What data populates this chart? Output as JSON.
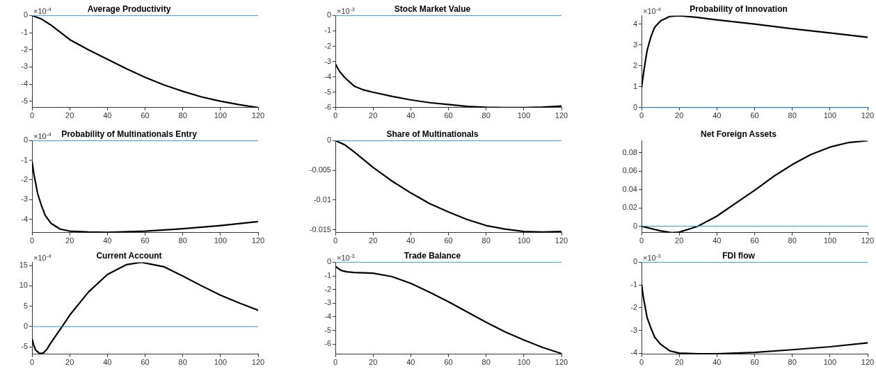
{
  "chart_data": [
    {
      "type": "line",
      "title": "Average Productivity",
      "annotations": [
        "×10$^{-4}$"
      ],
      "xlim": [
        0,
        120
      ],
      "xticks": [
        0,
        20,
        40,
        60,
        80,
        100,
        120
      ],
      "ylim": [
        -5.37,
        0
      ],
      "yticks": [
        -5,
        -4,
        -3,
        -2,
        -1,
        0
      ],
      "ref_lines": [
        {
          "axis": "y",
          "value": 0,
          "color": "#3399dd"
        }
      ],
      "x": [
        0,
        5,
        10,
        20,
        30,
        40,
        50,
        60,
        70,
        80,
        90,
        100,
        110,
        120
      ],
      "series": [
        {
          "color": "#000000",
          "values": [
            0,
            -0.2,
            -0.55,
            -1.4,
            -2.0,
            -2.55,
            -3.1,
            -3.6,
            -4.05,
            -4.42,
            -4.75,
            -5.0,
            -5.2,
            -5.37
          ]
        }
      ]
    },
    {
      "type": "line",
      "title": "Stock Market Value",
      "annotations": [
        "×10$^{-3}$"
      ],
      "xlim": [
        0,
        120
      ],
      "xticks": [
        0,
        20,
        40,
        60,
        80,
        100,
        120
      ],
      "ylim": [
        -6,
        0
      ],
      "yticks": [
        -6,
        -5,
        -4,
        -3,
        -2,
        -1,
        0
      ],
      "ref_lines": [
        {
          "axis": "y",
          "value": 0,
          "color": "#3399dd"
        }
      ],
      "x": [
        0,
        2,
        5,
        10,
        15,
        20,
        30,
        40,
        50,
        60,
        70,
        80,
        90,
        100,
        110,
        120
      ],
      "series": [
        {
          "color": "#000000",
          "values": [
            -3.15,
            -3.6,
            -4.05,
            -4.6,
            -4.85,
            -5.0,
            -5.27,
            -5.5,
            -5.68,
            -5.8,
            -5.92,
            -5.98,
            -6.0,
            -6.0,
            -5.97,
            -5.9
          ]
        }
      ]
    },
    {
      "type": "line",
      "title": "Probability of Innovation",
      "annotations": [
        "×10$^{-4}$"
      ],
      "xlim": [
        0,
        120
      ],
      "xticks": [
        0,
        20,
        40,
        60,
        80,
        100,
        120
      ],
      "ylim": [
        0,
        4.41
      ],
      "yticks": [
        0,
        1,
        2,
        3,
        4
      ],
      "ref_lines": [
        {
          "axis": "y",
          "value": 0,
          "color": "#3399dd"
        }
      ],
      "x": [
        0,
        1,
        2,
        3,
        5,
        7,
        10,
        15,
        20,
        30,
        40,
        60,
        80,
        100,
        120
      ],
      "series": [
        {
          "color": "#000000",
          "values": [
            0.95,
            1.6,
            2.2,
            2.75,
            3.4,
            3.85,
            4.15,
            4.37,
            4.4,
            4.32,
            4.2,
            4.0,
            3.78,
            3.58,
            3.37
          ]
        }
      ]
    },
    {
      "type": "line",
      "title": "Probability of Multinationals Entry",
      "annotations": [
        "×10$^{-4}$"
      ],
      "xlim": [
        0,
        120
      ],
      "xticks": [
        0,
        20,
        40,
        60,
        80,
        100,
        120
      ],
      "ylim": [
        -4.68,
        0
      ],
      "yticks": [
        -4,
        -3,
        -2,
        -1,
        0
      ],
      "ref_lines": [
        {
          "axis": "y",
          "value": 0,
          "color": "#3399dd"
        }
      ],
      "x": [
        0,
        1,
        2,
        3,
        5,
        7,
        10,
        15,
        20,
        30,
        40,
        60,
        80,
        100,
        120
      ],
      "series": [
        {
          "color": "#000000",
          "values": [
            -1.05,
            -1.7,
            -2.2,
            -2.7,
            -3.3,
            -3.8,
            -4.2,
            -4.5,
            -4.6,
            -4.65,
            -4.66,
            -4.6,
            -4.48,
            -4.32,
            -4.12
          ]
        }
      ]
    },
    {
      "type": "line",
      "title": "Share of Multinationals",
      "xlim": [
        0,
        120
      ],
      "xticks": [
        0,
        20,
        40,
        60,
        80,
        100,
        120
      ],
      "ylim": [
        -0.0155,
        0
      ],
      "yticks": [
        -0.015,
        -0.01,
        -0.005,
        0
      ],
      "ref_lines": [
        {
          "axis": "y",
          "value": 0,
          "color": "#3399dd"
        }
      ],
      "x": [
        0,
        5,
        10,
        20,
        30,
        40,
        50,
        60,
        70,
        80,
        90,
        100,
        110,
        120
      ],
      "series": [
        {
          "color": "#000000",
          "values": [
            0,
            -0.0007,
            -0.0019,
            -0.0045,
            -0.0068,
            -0.0088,
            -0.0106,
            -0.012,
            -0.0133,
            -0.0143,
            -0.0149,
            -0.0153,
            -0.0154,
            -0.0153
          ]
        }
      ]
    },
    {
      "type": "line",
      "title": "Net Foreign Assets",
      "xlim": [
        0,
        120
      ],
      "xticks": [
        0,
        20,
        40,
        60,
        80,
        100,
        120
      ],
      "ylim": [
        -0.007,
        0.093
      ],
      "yticks": [
        0,
        0.02,
        0.04,
        0.06,
        0.08
      ],
      "ref_lines": [
        {
          "axis": "y",
          "value": 0,
          "color": "#3399dd"
        }
      ],
      "x": [
        0,
        10,
        16,
        20,
        30,
        40,
        50,
        60,
        70,
        80,
        90,
        100,
        110,
        120
      ],
      "series": [
        {
          "color": "#000000",
          "values": [
            0,
            -0.005,
            -0.007,
            -0.0065,
            0,
            0.011,
            0.025,
            0.039,
            0.054,
            0.067,
            0.078,
            0.086,
            0.091,
            0.093
          ]
        }
      ]
    },
    {
      "type": "line",
      "title": "Current Account",
      "annotations": [
        "×10$^{-4}$"
      ],
      "xlim": [
        0,
        120
      ],
      "xticks": [
        0,
        20,
        40,
        60,
        80,
        100,
        120
      ],
      "ylim": [
        -6.8,
        15.8
      ],
      "yticks": [
        -5,
        0,
        5,
        10,
        15
      ],
      "ref_lines": [
        {
          "axis": "y",
          "value": 0,
          "color": "#3399dd"
        }
      ],
      "x": [
        0,
        1,
        2,
        4,
        6,
        8,
        10,
        13,
        16,
        20,
        30,
        40,
        50,
        58,
        70,
        80,
        90,
        100,
        110,
        120
      ],
      "series": [
        {
          "color": "#000000",
          "values": [
            -3,
            -4.7,
            -5.8,
            -6.6,
            -6.5,
            -5.5,
            -4,
            -2,
            0,
            2.8,
            8.5,
            12.8,
            15.2,
            15.8,
            14.7,
            12.4,
            10,
            7.7,
            5.8,
            4
          ]
        }
      ]
    },
    {
      "type": "line",
      "title": "Trade Balance",
      "annotations": [
        "×10$^{-3}$"
      ],
      "xlim": [
        0,
        120
      ],
      "xticks": [
        0,
        20,
        40,
        60,
        80,
        100,
        120
      ],
      "ylim": [
        -6.75,
        0
      ],
      "yticks": [
        -6,
        -5,
        -4,
        -3,
        -2,
        -1,
        0
      ],
      "ref_lines": [
        {
          "axis": "y",
          "value": 0,
          "color": "#3399dd"
        }
      ],
      "x": [
        0,
        3,
        6,
        10,
        20,
        30,
        40,
        50,
        60,
        70,
        80,
        90,
        100,
        110,
        120
      ],
      "series": [
        {
          "color": "#000000",
          "values": [
            -0.3,
            -0.6,
            -0.7,
            -0.75,
            -0.8,
            -1.05,
            -1.55,
            -2.2,
            -2.9,
            -3.65,
            -4.4,
            -5.1,
            -5.7,
            -6.25,
            -6.7
          ]
        }
      ]
    },
    {
      "type": "line",
      "title": "FDI flow",
      "annotations": [
        "×10$^{-3}$"
      ],
      "xlim": [
        0,
        120
      ],
      "xticks": [
        0,
        20,
        40,
        60,
        80,
        100,
        120
      ],
      "ylim": [
        -4.05,
        0
      ],
      "yticks": [
        -4,
        -3,
        -2,
        -1,
        0
      ],
      "ref_lines": [
        {
          "axis": "y",
          "value": 0,
          "color": "#3399dd"
        }
      ],
      "x": [
        0,
        1,
        2,
        3,
        5,
        7,
        10,
        15,
        20,
        30,
        40,
        60,
        80,
        100,
        120
      ],
      "series": [
        {
          "color": "#000000",
          "values": [
            -0.95,
            -1.55,
            -2.0,
            -2.45,
            -2.9,
            -3.3,
            -3.6,
            -3.9,
            -4.0,
            -4.03,
            -4.03,
            -3.97,
            -3.85,
            -3.72,
            -3.55
          ]
        }
      ]
    }
  ]
}
